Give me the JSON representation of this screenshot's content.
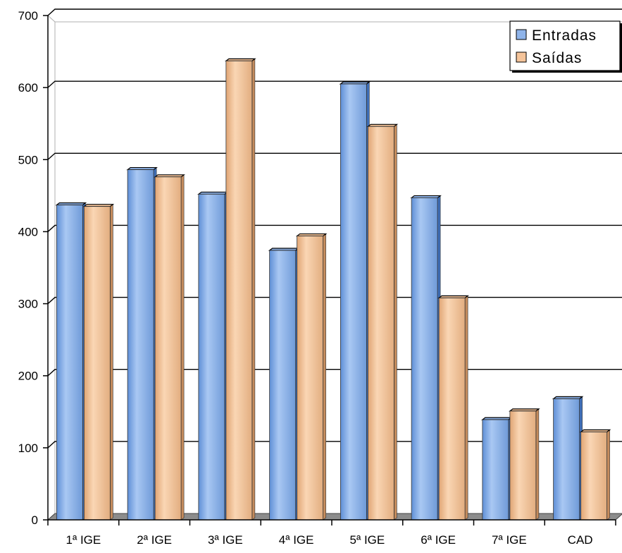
{
  "colors": {
    "entradas_fill": "#8fb4ea",
    "entradas_dark": "#3f6fb8",
    "saidas_fill": "#f5c49a",
    "saidas_dark": "#c48b5c",
    "floor": "#8c8c8c",
    "grid": "#000000"
  },
  "chart_data": {
    "type": "bar",
    "title": "",
    "xlabel": "",
    "ylabel": "",
    "ylim": [
      0,
      700
    ],
    "yticks": [
      0,
      100,
      200,
      300,
      400,
      500,
      600,
      700
    ],
    "grid": true,
    "legend_position": "top-right",
    "categories": [
      "1ª IGE",
      "2ª IGE",
      "3ª IGE",
      "4ª IGE",
      "5ª IGE",
      "6ª IGE",
      "7ª IGE",
      "CAD"
    ],
    "series": [
      {
        "name": "Entradas",
        "values": [
          437,
          486,
          452,
          374,
          605,
          447,
          139,
          168
        ]
      },
      {
        "name": "Saídas",
        "values": [
          435,
          476,
          637,
          394,
          546,
          308,
          151,
          122
        ]
      }
    ]
  }
}
